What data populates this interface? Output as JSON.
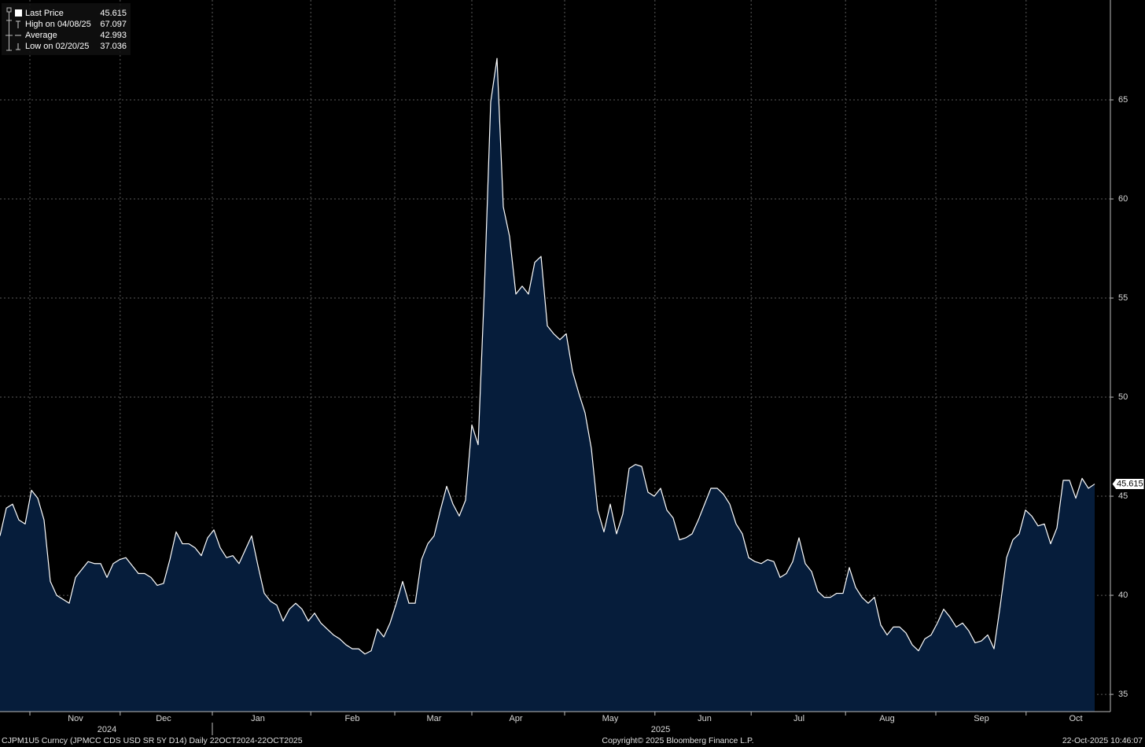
{
  "chart_data": {
    "type": "area",
    "color": "#ffffff",
    "fill": "#061d3b",
    "ylim": [
      34.13,
      70.04
    ],
    "yticks": [
      35,
      40,
      45,
      50,
      55,
      60,
      65
    ],
    "grid": true,
    "categories": [
      null,
      null,
      null,
      null,
      null,
      null,
      null,
      null,
      null,
      null,
      null,
      null,
      "Nov",
      null,
      null,
      null,
      null,
      null,
      null,
      null,
      null,
      null,
      null,
      null,
      null,
      null,
      "Dec",
      null,
      null,
      null,
      null,
      null,
      null,
      null,
      null,
      null,
      null,
      null,
      null,
      null,
      null,
      "Jan",
      null,
      null,
      null,
      null,
      null,
      null,
      null,
      null,
      null,
      null,
      null,
      null,
      null,
      null,
      "Feb",
      null,
      null,
      null,
      null,
      null,
      null,
      null,
      null,
      null,
      null,
      null,
      null,
      "Mar",
      null,
      null,
      null,
      null,
      null,
      null,
      null,
      null,
      null,
      null,
      null,
      null,
      "Apr",
      null,
      null,
      null,
      null,
      null,
      null,
      null,
      null,
      null,
      null,
      null,
      null,
      null,
      null,
      "May",
      null,
      null,
      null,
      null,
      null,
      null,
      null,
      null,
      null,
      null,
      null,
      null,
      null,
      null,
      "Jun",
      null,
      null,
      null,
      null,
      null,
      null,
      null,
      null,
      null,
      null,
      null,
      null,
      null,
      null,
      "Jul",
      null,
      null,
      null,
      null,
      null,
      null,
      null,
      null,
      null,
      null,
      null,
      null,
      null,
      "Aug",
      null,
      null,
      null,
      null,
      null,
      null,
      null,
      null,
      null,
      null,
      null,
      null,
      null,
      null,
      "Sep",
      null,
      null,
      null,
      null,
      null,
      null,
      null,
      null,
      null,
      null,
      null,
      null,
      null,
      null,
      "Oct",
      null,
      null,
      null
    ],
    "values": [
      43.0,
      44.4,
      44.6,
      43.8,
      43.6,
      45.3,
      44.9,
      43.8,
      40.7,
      40.0,
      39.8,
      39.6,
      40.9,
      41.3,
      41.7,
      41.6,
      41.6,
      40.9,
      41.6,
      41.8,
      41.9,
      41.5,
      41.1,
      41.1,
      40.9,
      40.5,
      40.6,
      41.8,
      43.2,
      42.6,
      42.6,
      42.4,
      42.0,
      42.9,
      43.3,
      42.4,
      41.9,
      42.0,
      41.6,
      42.3,
      43.0,
      41.5,
      40.1,
      39.7,
      39.5,
      38.7,
      39.3,
      39.6,
      39.3,
      38.7,
      39.1,
      38.6,
      38.3,
      38.0,
      37.8,
      37.5,
      37.3,
      37.3,
      37.036,
      37.2,
      38.3,
      37.9,
      38.6,
      39.6,
      40.7,
      39.6,
      39.6,
      41.8,
      42.6,
      43.0,
      44.3,
      45.5,
      44.6,
      44.0,
      44.8,
      48.6,
      47.6,
      55.5,
      64.9,
      67.097,
      59.6,
      58.1,
      55.2,
      55.6,
      55.2,
      56.8,
      57.1,
      53.6,
      53.2,
      52.9,
      53.2,
      51.3,
      50.2,
      49.2,
      47.4,
      44.3,
      43.2,
      44.6,
      43.1,
      44.1,
      46.4,
      46.6,
      46.5,
      45.2,
      45.0,
      45.4,
      44.3,
      43.9,
      42.8,
      42.9,
      43.1,
      43.8,
      44.6,
      45.4,
      45.4,
      45.1,
      44.6,
      43.6,
      43.1,
      41.9,
      41.7,
      41.6,
      41.8,
      41.7,
      40.9,
      41.1,
      41.7,
      42.9,
      41.6,
      41.2,
      40.2,
      39.9,
      39.9,
      40.1,
      40.1,
      41.4,
      40.4,
      39.9,
      39.6,
      39.9,
      38.5,
      38.0,
      38.4,
      38.4,
      38.1,
      37.5,
      37.2,
      37.8,
      38.0,
      38.6,
      39.3,
      38.9,
      38.4,
      38.6,
      38.2,
      37.6,
      37.7,
      38.0,
      37.3,
      39.5,
      41.9,
      42.8,
      43.1,
      44.3,
      44.0,
      43.5,
      43.6,
      42.6,
      43.4,
      45.8,
      45.8,
      44.9,
      45.9,
      45.4,
      45.615
    ],
    "xgrid": [
      4.75,
      19.1,
      33.75,
      49.4,
      62.75,
      75,
      89.75,
      104.1,
      119.4,
      134.4,
      148.75,
      163.1
    ],
    "year_labels": [
      {
        "value": 17,
        "label": "2024"
      },
      {
        "value": 105,
        "label": "2025"
      }
    ],
    "year_breaks": [
      33.75
    ],
    "legend": [
      {
        "label": "Last Price",
        "value": 45.615
      },
      {
        "label": "High on 04/08/25",
        "value": 67.097
      },
      {
        "label": "Average",
        "value": 42.993
      },
      {
        "label": "Low on 02/20/25",
        "value": 37.036
      }
    ]
  },
  "footer": {
    "left": "CJPM1U5 Curncy (JPMCC CDS USD SR 5Y D14) Daily 22OCT2024-22OCT2025",
    "center": "Copyright© 2025 Bloomberg Finance L.P.",
    "right": "22-Oct-2025 10:46:07"
  }
}
